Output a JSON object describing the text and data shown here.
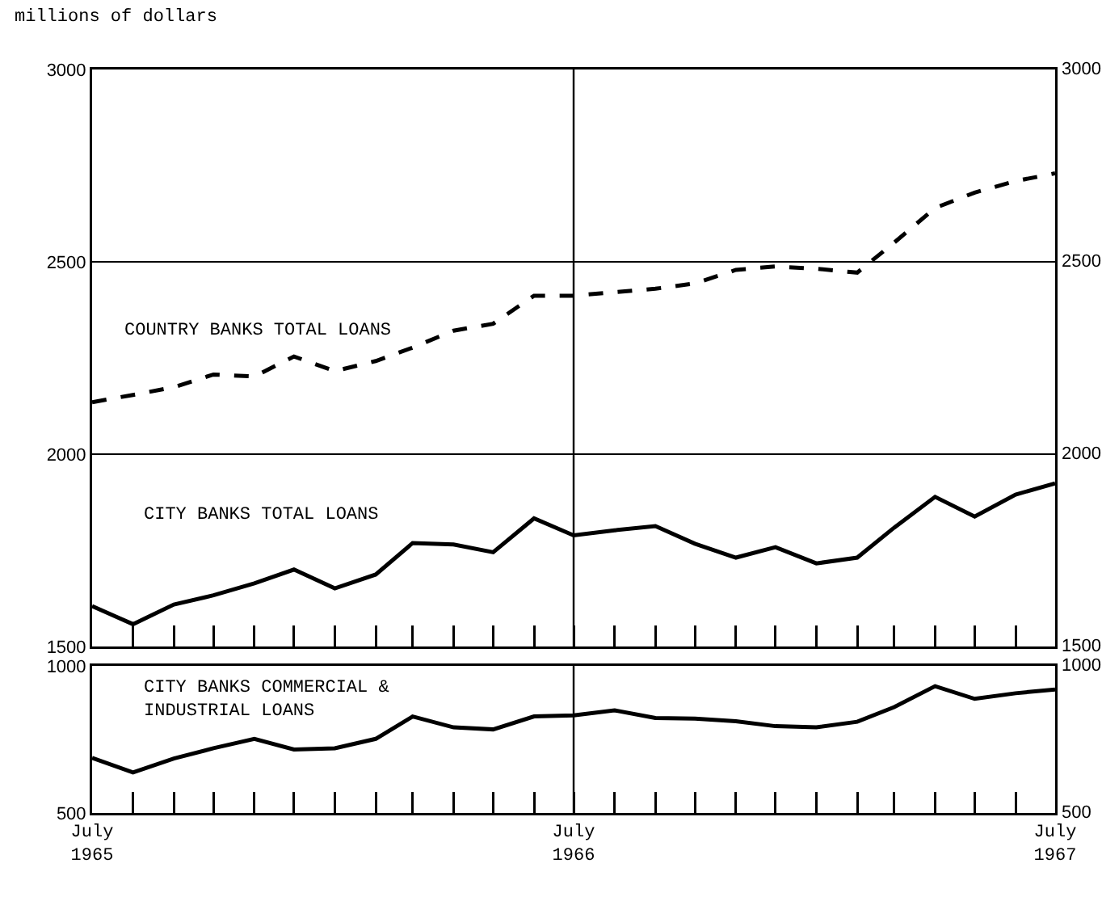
{
  "chart_data": [
    {
      "type": "line",
      "annotations": [
        "millions of dollars"
      ],
      "x": [
        "1965-07",
        "1965-08",
        "1965-09",
        "1965-10",
        "1965-11",
        "1965-12",
        "1966-01",
        "1966-02",
        "1966-03",
        "1966-04",
        "1966-05",
        "1966-06",
        "1966-07",
        "1966-08",
        "1966-09",
        "1966-10",
        "1966-11",
        "1966-12",
        "1967-01",
        "1967-02",
        "1967-03",
        "1967-04",
        "1967-05",
        "1967-06",
        "1967-07"
      ],
      "series": [
        {
          "name": "COUNTRY BANKS TOTAL LOANS",
          "color": "#000000",
          "line_style": "dashed",
          "values": [
            2135,
            2154,
            2174,
            2207,
            2202,
            2254,
            2216,
            2242,
            2277,
            2321,
            2339,
            2412,
            2412,
            2421,
            2430,
            2444,
            2479,
            2488,
            2482,
            2472,
            2550,
            2640,
            2680,
            2710,
            2730
          ]
        },
        {
          "name": "CITY BANKS TOTAL LOANS",
          "color": "#000000",
          "line_style": "solid",
          "values": [
            1605,
            1558,
            1609,
            1633,
            1664,
            1700,
            1651,
            1687,
            1769,
            1765,
            1745,
            1833,
            1789,
            1802,
            1813,
            1767,
            1731,
            1758,
            1716,
            1731,
            1809,
            1889,
            1838,
            1895,
            1924
          ]
        }
      ],
      "xlim": [
        "1965-07",
        "1967-07"
      ],
      "xticks": [
        {
          "value": "1965-07",
          "label": null
        },
        {
          "value": "1965-08",
          "label": null
        },
        {
          "value": "1965-09",
          "label": null
        },
        {
          "value": "1965-10",
          "label": null
        },
        {
          "value": "1965-11",
          "label": null
        },
        {
          "value": "1965-12",
          "label": null
        },
        {
          "value": "1966-01",
          "label": null
        },
        {
          "value": "1966-02",
          "label": null
        },
        {
          "value": "1966-03",
          "label": null
        },
        {
          "value": "1966-04",
          "label": null
        },
        {
          "value": "1966-05",
          "label": null
        },
        {
          "value": "1966-06",
          "label": null
        },
        {
          "value": "1966-07",
          "label": null
        },
        {
          "value": "1966-08",
          "label": null
        },
        {
          "value": "1966-09",
          "label": null
        },
        {
          "value": "1966-10",
          "label": null
        },
        {
          "value": "1966-11",
          "label": null
        },
        {
          "value": "1966-12",
          "label": null
        },
        {
          "value": "1967-01",
          "label": null
        },
        {
          "value": "1967-02",
          "label": null
        },
        {
          "value": "1967-03",
          "label": null
        },
        {
          "value": "1967-04",
          "label": null
        },
        {
          "value": "1967-05",
          "label": null
        },
        {
          "value": "1967-06",
          "label": null
        },
        {
          "value": "1967-07",
          "label": null
        }
      ],
      "ylim": [
        1500,
        3000
      ],
      "yticks": [
        1500,
        2000,
        2500,
        3000
      ],
      "y2lim": [
        1500,
        3000
      ],
      "y2ticks": [
        1500,
        2000,
        2500,
        3000
      ],
      "grid": "y",
      "tick_labels": "y",
      "ref_lines": [
        {
          "axis": "x",
          "value": "1966-07"
        }
      ]
    },
    {
      "type": "line",
      "x": [
        "1965-07",
        "1965-08",
        "1965-09",
        "1965-10",
        "1965-11",
        "1965-12",
        "1966-01",
        "1966-02",
        "1966-03",
        "1966-04",
        "1966-05",
        "1966-06",
        "1966-07",
        "1966-08",
        "1966-09",
        "1966-10",
        "1966-11",
        "1966-12",
        "1967-01",
        "1967-02",
        "1967-03",
        "1967-04",
        "1967-05",
        "1967-06",
        "1967-07"
      ],
      "series": [
        {
          "name": "CITY BANKS COMMERCIAL & INDUSTRIAL LOANS",
          "color": "#000000",
          "line_style": "solid",
          "values": [
            687,
            638,
            685,
            720,
            752,
            716,
            720,
            752,
            828,
            791,
            784,
            828,
            832,
            849,
            823,
            821,
            812,
            795,
            791,
            810,
            860,
            931,
            888,
            907,
            920
          ]
        }
      ],
      "xlim": [
        "1965-07",
        "1967-07"
      ],
      "xticks": [
        {
          "value": "1965-07",
          "label": "July 1965"
        },
        {
          "value": "1965-08",
          "label": null
        },
        {
          "value": "1965-09",
          "label": null
        },
        {
          "value": "1965-10",
          "label": null
        },
        {
          "value": "1965-11",
          "label": null
        },
        {
          "value": "1965-12",
          "label": null
        },
        {
          "value": "1966-01",
          "label": null
        },
        {
          "value": "1966-02",
          "label": null
        },
        {
          "value": "1966-03",
          "label": null
        },
        {
          "value": "1966-04",
          "label": null
        },
        {
          "value": "1966-05",
          "label": null
        },
        {
          "value": "1966-06",
          "label": null
        },
        {
          "value": "1966-07",
          "label": "July 1966"
        },
        {
          "value": "1966-08",
          "label": null
        },
        {
          "value": "1966-09",
          "label": null
        },
        {
          "value": "1966-10",
          "label": null
        },
        {
          "value": "1966-11",
          "label": null
        },
        {
          "value": "1966-12",
          "label": null
        },
        {
          "value": "1967-01",
          "label": null
        },
        {
          "value": "1967-02",
          "label": null
        },
        {
          "value": "1967-03",
          "label": null
        },
        {
          "value": "1967-04",
          "label": null
        },
        {
          "value": "1967-05",
          "label": null
        },
        {
          "value": "1967-06",
          "label": null
        },
        {
          "value": "1967-07",
          "label": "July 1967"
        }
      ],
      "ylim": [
        500,
        1000
      ],
      "yticks": [
        500,
        1000
      ],
      "y2lim": [
        500,
        1000
      ],
      "y2ticks": [
        500,
        1000
      ],
      "grid": false,
      "ref_lines": [
        {
          "axis": "x",
          "value": "1966-07"
        }
      ]
    }
  ]
}
